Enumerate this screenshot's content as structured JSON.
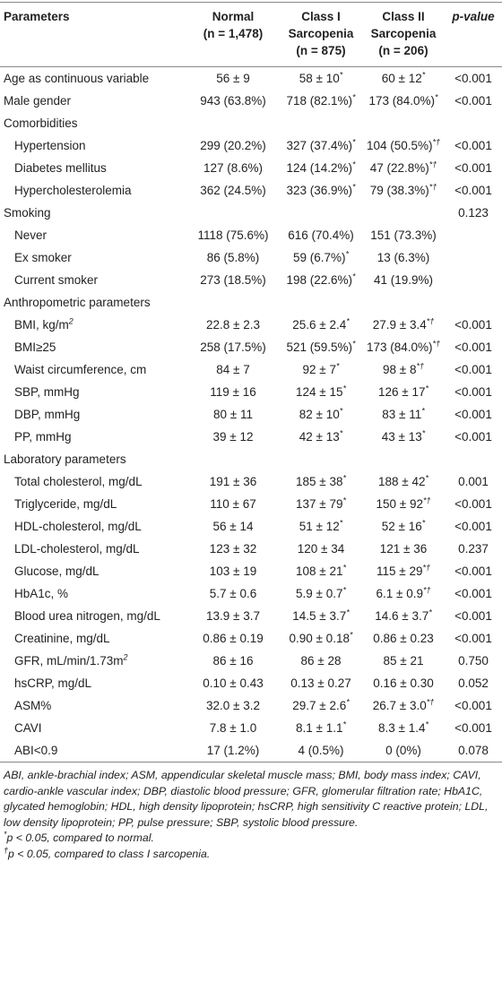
{
  "header": {
    "label": "Parameters",
    "columns": [
      [
        "Normal",
        "(n = 1,478)"
      ],
      [
        "Class I",
        "Sarcopenia",
        "(n = 875)"
      ],
      [
        "Class II",
        "Sarcopenia",
        "(n = 206)"
      ]
    ],
    "p": "p-value"
  },
  "rows": [
    {
      "label": "Age as continuous variable",
      "cells": [
        "56 ± 9",
        {
          "text": "58 ± 10",
          "sup": "*"
        },
        {
          "text": "60 ± 12",
          "sup": "*"
        }
      ],
      "p": "<0.001"
    },
    {
      "label": "Male gender",
      "cells": [
        "943 (63.8%)",
        {
          "text": "718 (82.1%)",
          "sup": "*"
        },
        {
          "text": "173 (84.0%)",
          "sup": "*"
        }
      ],
      "p": "<0.001"
    },
    {
      "label": "Comorbidities",
      "items": [
        {
          "label": "Hypertension",
          "cells": [
            "299 (20.2%)",
            {
              "text": "327 (37.4%)",
              "sup": "*"
            },
            {
              "text": "104 (50.5%)",
              "sup": "*†"
            }
          ],
          "p": "<0.001"
        },
        {
          "label": "Diabetes mellitus",
          "cells": [
            "127 (8.6%)",
            {
              "text": "124 (14.2%)",
              "sup": "*"
            },
            {
              "text": "47 (22.8%)",
              "sup": "*†"
            }
          ],
          "p": "<0.001"
        },
        {
          "label": "Hypercholesterolemia",
          "cells": [
            "362 (24.5%)",
            {
              "text": "323 (36.9%)",
              "sup": "*"
            },
            {
              "text": "79 (38.3%)",
              "sup": "*†"
            }
          ],
          "p": "<0.001"
        }
      ]
    },
    {
      "label": "Smoking",
      "p": "0.123",
      "items": [
        {
          "label": "Never",
          "cells": [
            "1118 (75.6%)",
            "616 (70.4%)",
            "151 (73.3%)"
          ]
        },
        {
          "label": "Ex smoker",
          "cells": [
            "86 (5.8%)",
            {
              "text": "59 (6.7%)",
              "sup": "*"
            },
            "13 (6.3%)"
          ]
        },
        {
          "label": "Current smoker",
          "cells": [
            "273 (18.5%)",
            {
              "text": "198 (22.6%)",
              "sup": "*"
            },
            "41 (19.9%)"
          ]
        }
      ]
    },
    {
      "label": "Anthropometric parameters",
      "items": [
        {
          "label": {
            "text": "BMI, kg/m",
            "sup": "2"
          },
          "cells": [
            "22.8 ± 2.3",
            {
              "text": "25.6 ± 2.4",
              "sup": "*"
            },
            {
              "text": "27.9 ± 3.4",
              "sup": "*†"
            }
          ],
          "p": "<0.001"
        },
        {
          "label": "BMI≥25",
          "cells": [
            "258 (17.5%)",
            {
              "text": "521 (59.5%)",
              "sup": "*"
            },
            {
              "text": "173 (84.0%)",
              "sup": "*†"
            }
          ],
          "p": "<0.001"
        },
        {
          "label": "Waist circumference, cm",
          "cells": [
            "84 ± 7",
            {
              "text": "92 ± 7",
              "sup": "*"
            },
            {
              "text": "98 ± 8",
              "sup": "*†"
            }
          ],
          "p": "<0.001"
        },
        {
          "label": "SBP, mmHg",
          "cells": [
            "119 ± 16",
            {
              "text": "124 ± 15",
              "sup": "*"
            },
            {
              "text": "126 ± 17",
              "sup": "*"
            }
          ],
          "p": "<0.001"
        },
        {
          "label": "DBP, mmHg",
          "cells": [
            "80 ± 11",
            {
              "text": "82 ± 10",
              "sup": "*"
            },
            {
              "text": "83 ± 11",
              "sup": "*"
            }
          ],
          "p": "<0.001"
        },
        {
          "label": "PP, mmHg",
          "cells": [
            "39 ± 12",
            {
              "text": "42 ± 13",
              "sup": "*"
            },
            {
              "text": "43 ± 13",
              "sup": "*"
            }
          ],
          "p": "<0.001"
        }
      ]
    },
    {
      "label": "Laboratory parameters",
      "items": [
        {
          "label": "Total cholesterol, mg/dL",
          "cells": [
            "191 ± 36",
            {
              "text": "185 ± 38",
              "sup": "*"
            },
            {
              "text": "188 ± 42",
              "sup": "*"
            }
          ],
          "p": "0.001"
        },
        {
          "label": "Triglyceride, mg/dL",
          "cells": [
            "110 ± 67",
            {
              "text": "137 ± 79",
              "sup": "*"
            },
            {
              "text": "150 ± 92",
              "sup": "*†"
            }
          ],
          "p": "<0.001"
        },
        {
          "label": "HDL-cholesterol, mg/dL",
          "cells": [
            "56 ± 14",
            {
              "text": "51 ± 12",
              "sup": "*"
            },
            {
              "text": "52 ± 16",
              "sup": "*"
            }
          ],
          "p": "<0.001"
        },
        {
          "label": "LDL-cholesterol, mg/dL",
          "cells": [
            "123 ± 32",
            "120 ± 34",
            "121 ± 36"
          ],
          "p": "0.237"
        },
        {
          "label": "Glucose, mg/dL",
          "cells": [
            "103 ± 19",
            {
              "text": "108 ± 21",
              "sup": "*"
            },
            {
              "text": "115 ± 29",
              "sup": "*†"
            }
          ],
          "p": "<0.001"
        },
        {
          "label": "HbA1c, %",
          "cells": [
            "5.7 ± 0.6",
            {
              "text": "5.9 ± 0.7",
              "sup": "*"
            },
            {
              "text": "6.1 ± 0.9",
              "sup": "*†"
            }
          ],
          "p": "<0.001"
        },
        {
          "label": "Blood urea nitrogen, mg/dL",
          "cells": [
            "13.9 ± 3.7",
            {
              "text": "14.5 ± 3.7",
              "sup": "*"
            },
            {
              "text": "14.6 ± 3.7",
              "sup": "*"
            }
          ],
          "p": "<0.001"
        },
        {
          "label": "Creatinine, mg/dL",
          "cells": [
            "0.86 ± 0.19",
            {
              "text": "0.90 ± 0.18",
              "sup": "*"
            },
            "0.86 ± 0.23"
          ],
          "p": "<0.001"
        },
        {
          "label": {
            "text": "GFR, mL/min/1.73m",
            "sup": "2"
          },
          "cells": [
            "86 ± 16",
            "86 ± 28",
            "85 ± 21"
          ],
          "p": "0.750"
        },
        {
          "label": "hsCRP, mg/dL",
          "cells": [
            "0.10 ± 0.43",
            "0.13 ± 0.27",
            "0.16 ± 0.30"
          ],
          "p": "0.052"
        },
        {
          "label": "ASM%",
          "cells": [
            "32.0 ± 3.2",
            {
              "text": "29.7 ± 2.6",
              "sup": "*"
            },
            {
              "text": "26.7 ± 3.0",
              "sup": "*†"
            }
          ],
          "p": "<0.001"
        },
        {
          "label": "CAVI",
          "cells": [
            "7.8 ± 1.0",
            {
              "text": "8.1 ± 1.1",
              "sup": "*"
            },
            {
              "text": "8.3 ± 1.4",
              "sup": "*"
            }
          ],
          "p": "<0.001"
        },
        {
          "label": "ABI<0.9",
          "cells": [
            "17 (1.2%)",
            "4 (0.5%)",
            "0 (0%)"
          ],
          "p": "0.078"
        }
      ]
    }
  ],
  "footnotes": {
    "abbreviations": "ABI, ankle-brachial index; ASM, appendicular skeletal muscle mass; BMI, body mass index; CAVI, cardio-ankle vascular index; DBP, diastolic blood pressure; GFR, glomerular filtration rate; HbA1C, glycated hemoglobin; HDL, high density lipoprotein; hsCRP, high sensitivity C reactive protein; LDL, low density lipoprotein; PP, pulse pressure; SBP, systolic blood pressure.",
    "notes": [
      {
        "sup": "*",
        "text": "p < 0.05, compared to normal."
      },
      {
        "sup": "†",
        "text": "p < 0.05, compared to class I sarcopenia."
      }
    ]
  }
}
